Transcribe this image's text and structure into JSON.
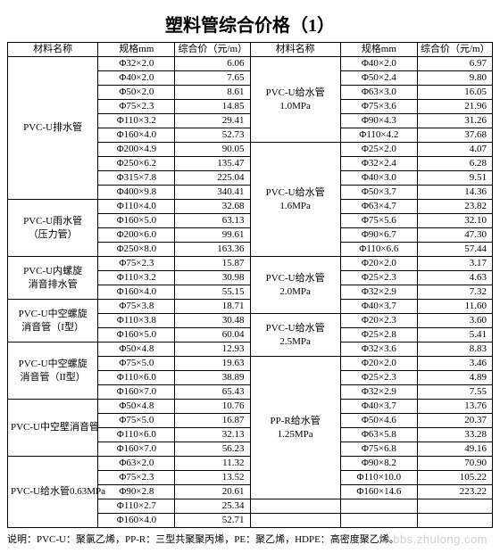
{
  "title": "塑料管综合价格（1）",
  "headers": {
    "name": "材料名称",
    "spec": "规格mm",
    "price": "综合价（元/m）"
  },
  "left": [
    {
      "name": "PVC-U排水管",
      "rows": [
        {
          "s": "Φ32×2.0",
          "p": "6.06"
        },
        {
          "s": "Φ40×2.0",
          "p": "7.65"
        },
        {
          "s": "Φ50×2.0",
          "p": "8.61"
        },
        {
          "s": "Φ75×2.3",
          "p": "14.85"
        },
        {
          "s": "Φ110×3.2",
          "p": "29.41"
        },
        {
          "s": "Φ160×4.0",
          "p": "52.73"
        },
        {
          "s": "Φ200×4.9",
          "p": "90.05"
        },
        {
          "s": "Φ250×6.2",
          "p": "135.47"
        },
        {
          "s": "Φ315×7.8",
          "p": "225.04"
        },
        {
          "s": "Φ400×9.8",
          "p": "340.41"
        }
      ]
    },
    {
      "name": "PVC-U雨水管\n（压力管）",
      "rows": [
        {
          "s": "Φ110×4.0",
          "p": "32.68"
        },
        {
          "s": "Φ160×5.0",
          "p": "63.13"
        },
        {
          "s": "Φ200×6.0",
          "p": "99.61"
        },
        {
          "s": "Φ250×8.0",
          "p": "163.36"
        }
      ]
    },
    {
      "name": "PVC-U内螺旋\n消音排水管",
      "rows": [
        {
          "s": "Φ75×2.3",
          "p": "15.87"
        },
        {
          "s": "Φ110×3.2",
          "p": "30.98"
        },
        {
          "s": "Φ160×4.0",
          "p": "55.15"
        }
      ]
    },
    {
      "name": "PVC-U中空螺旋\n消音管（I型）",
      "rows": [
        {
          "s": "Φ75×3.8",
          "p": "18.71"
        },
        {
          "s": "Φ110×3.8",
          "p": "30.48"
        },
        {
          "s": "Φ160×5.0",
          "p": "60.04"
        }
      ]
    },
    {
      "name": "PVC-U中空螺旋\n消音管（II型）",
      "rows": [
        {
          "s": "Φ50×4.8",
          "p": "12.93"
        },
        {
          "s": "Φ75×5.0",
          "p": "19.63"
        },
        {
          "s": "Φ110×6.0",
          "p": "38.89"
        },
        {
          "s": "Φ160×7.0",
          "p": "65.43"
        }
      ]
    },
    {
      "name": "PVC-U中空壁消音管",
      "rows": [
        {
          "s": "Φ50×4.8",
          "p": "10.76"
        },
        {
          "s": "Φ75×5.0",
          "p": "16.87"
        },
        {
          "s": "Φ110×6.0",
          "p": "32.13"
        },
        {
          "s": "Φ160×7.0",
          "p": "56.23"
        }
      ]
    },
    {
      "name": "PVC-U给水管0.63MPa",
      "rows": [
        {
          "s": "Φ63×2.0",
          "p": "11.32"
        },
        {
          "s": "Φ75×2.3",
          "p": "13.52"
        },
        {
          "s": "Φ90×2.8",
          "p": "20.61"
        },
        {
          "s": "Φ110×2.7",
          "p": "25.34"
        },
        {
          "s": "Φ160×4.0",
          "p": "52.71"
        }
      ]
    }
  ],
  "right": [
    {
      "name": "PVC-U给水管\n1.0MPa",
      "rows": [
        {
          "s": "Φ40×2.0",
          "p": "6.97"
        },
        {
          "s": "Φ50×2.4",
          "p": "9.80"
        },
        {
          "s": "Φ63×3.0",
          "p": "16.05"
        },
        {
          "s": "Φ75×3.6",
          "p": "21.96"
        },
        {
          "s": "Φ90×4.3",
          "p": "31.26"
        },
        {
          "s": "Φ110×4.2",
          "p": "37.68"
        }
      ]
    },
    {
      "name": "PVC-U给水管\n1.6MPa",
      "rows": [
        {
          "s": "Φ25×2.0",
          "p": "4.07"
        },
        {
          "s": "Φ32×2.4",
          "p": "6.28"
        },
        {
          "s": "Φ40×3.0",
          "p": "9.51"
        },
        {
          "s": "Φ50×3.7",
          "p": "14.36"
        },
        {
          "s": "Φ63×4.7",
          "p": "23.82"
        },
        {
          "s": "Φ75×5.6",
          "p": "32.10"
        },
        {
          "s": "Φ90×6.7",
          "p": "47.30"
        },
        {
          "s": "Φ110×6.6",
          "p": "57.44"
        }
      ]
    },
    {
      "name": "PVC-U给水管\n2.0MPa",
      "rows": [
        {
          "s": "Φ20×2.0",
          "p": "3.17"
        },
        {
          "s": "Φ25×2.3",
          "p": "4.63"
        },
        {
          "s": "Φ32×2.9",
          "p": "7.32"
        },
        {
          "s": "Φ40×3.7",
          "p": "11.60"
        }
      ]
    },
    {
      "name": "PVC-U给水管\n2.5MPa",
      "rows": [
        {
          "s": "Φ20×2.3",
          "p": "3.60"
        },
        {
          "s": "Φ25×2.8",
          "p": "5.41"
        },
        {
          "s": "Φ32×3.6",
          "p": "8.83"
        }
      ]
    },
    {
      "name": "PP-R给水管\n1.25MPa",
      "rows": [
        {
          "s": "Φ20×2.0",
          "p": "3.46"
        },
        {
          "s": "Φ25×2.3",
          "p": "4.89"
        },
        {
          "s": "Φ32×2.9",
          "p": "7.55"
        },
        {
          "s": "Φ40×3.7",
          "p": "13.76"
        },
        {
          "s": "Φ50×4.6",
          "p": "20.37"
        },
        {
          "s": "Φ63×5.8",
          "p": "33.28"
        },
        {
          "s": "Φ75×6.8",
          "p": "49.16"
        },
        {
          "s": "Φ90×8.2",
          "p": "70.90"
        },
        {
          "s": "Φ110×10.0",
          "p": "105.22"
        },
        {
          "s": "Φ160×14.6",
          "p": "223.22"
        }
      ]
    }
  ],
  "note": "说明：PVC-U：聚氯乙烯，PP-R：三型共聚聚丙烯，PE：聚乙烯，HDPE：高密度聚乙烯。",
  "watermark": "bbs.zhulong.com"
}
